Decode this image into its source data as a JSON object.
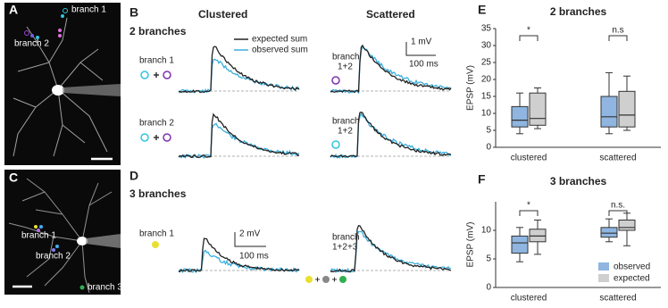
{
  "figure": {
    "A": {
      "label": "A",
      "branch_1": "branch 1",
      "branch_2": "branch 2"
    },
    "C": {
      "label": "C",
      "branch_1": "branch 1",
      "branch_2": "branch 2",
      "branch_3": "branch 3"
    },
    "B": {
      "label": "B",
      "col_clustered": "Clustered",
      "col_scattered": "Scattered",
      "row_title": "2 branches",
      "legend_expected": "expected sum",
      "legend_observed": "observed sum",
      "scale_v": "1 mV",
      "scale_t": "100 ms",
      "row1_clustered": "branch 1",
      "row1_scattered": [
        "branch",
        "1+2"
      ],
      "row2_clustered": "branch 2",
      "row2_scattered": [
        "branch",
        "1+2"
      ]
    },
    "D": {
      "label": "D",
      "row_title": "3 branches",
      "clustered": "branch 1",
      "scattered": [
        "branch",
        "1+2+3"
      ],
      "scale_v": "2 mV",
      "scale_t": "100 ms"
    }
  },
  "chart_data": [
    {
      "type": "box",
      "panel": "E",
      "title": "2 branches",
      "y_label": "EPSP (mV)",
      "categories": [
        "clustered",
        "scattered"
      ],
      "ylim": [
        0,
        35
      ],
      "yticks": [
        0,
        5,
        10,
        15,
        20,
        25,
        30,
        35
      ],
      "annotations": [
        "*",
        "n.s"
      ],
      "series": [
        {
          "color": "#8fb5e0",
          "boxes": [
            {
              "low": 4,
              "q1": 6,
              "median": 8,
              "q3": 12,
              "high": 16
            },
            {
              "low": 4,
              "q1": 6,
              "median": 9,
              "q3": 15,
              "high": 22
            }
          ]
        },
        {
          "color": "#cfcfcf",
          "boxes": [
            {
              "low": 5.5,
              "q1": 6.5,
              "median": 8.5,
              "q3": 16,
              "high": 17.5
            },
            {
              "low": 5,
              "q1": 6,
              "median": 9.5,
              "q3": 16.5,
              "high": 21
            }
          ]
        }
      ]
    },
    {
      "type": "box",
      "panel": "F",
      "title": "3 branches",
      "y_label": "EPSP (mV)",
      "categories": [
        "clustered",
        "scattered"
      ],
      "ylim": [
        0,
        15
      ],
      "yticks": [
        0,
        5,
        10
      ],
      "annotations": [
        "*",
        "n.s."
      ],
      "legend": "lower right",
      "series": [
        {
          "name": "observed",
          "color": "#8fb5e0",
          "boxes": [
            {
              "low": 4.5,
              "q1": 6,
              "median": 7.8,
              "q3": 9,
              "high": 10.5
            },
            {
              "low": 8,
              "q1": 8.8,
              "median": 9.5,
              "q3": 10.5,
              "high": 12
            }
          ]
        },
        {
          "name": "expected",
          "color": "#cfcfcf",
          "boxes": [
            {
              "low": 5.8,
              "q1": 8,
              "median": 9,
              "q3": 10.2,
              "high": 11.8
            },
            {
              "low": 7.3,
              "q1": 10,
              "median": 10.5,
              "q3": 11.8,
              "high": 13
            }
          ]
        }
      ]
    }
  ]
}
